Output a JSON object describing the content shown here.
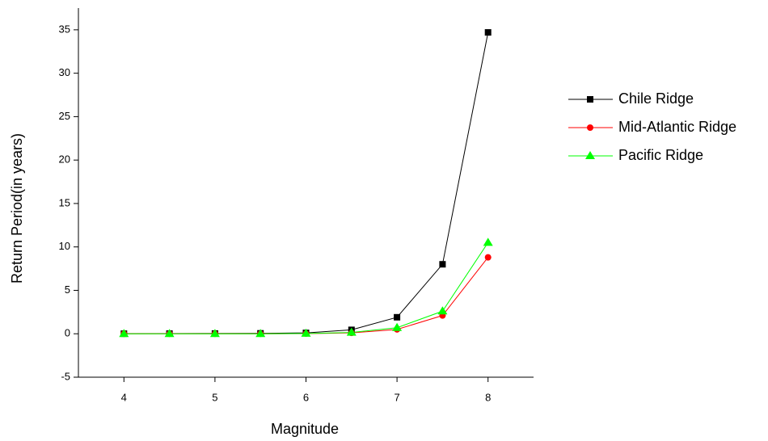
{
  "chart_data": {
    "type": "line",
    "x_label": "Magnitude",
    "y_label": "Return Period(in years)",
    "x": [
      4,
      4.5,
      5,
      5.5,
      6,
      6.5,
      7,
      7.5,
      8
    ],
    "series": [
      {
        "name": "Chile Ridge",
        "color": "#000000",
        "marker": "square",
        "values": [
          0.01,
          0.02,
          0.03,
          0.05,
          0.1,
          0.45,
          1.9,
          8.0,
          34.7
        ]
      },
      {
        "name": "Mid-Atlantic Ridge",
        "color": "#ff0000",
        "marker": "circle",
        "values": [
          0,
          0,
          0,
          0,
          0.02,
          0.1,
          0.5,
          2.1,
          8.8
        ]
      },
      {
        "name": "Pacific Ridge",
        "color": "#00ff00",
        "marker": "triangle",
        "values": [
          0,
          0,
          0,
          0,
          0.03,
          0.15,
          0.7,
          2.6,
          10.5
        ]
      }
    ],
    "xlim": [
      3.5,
      8.5
    ],
    "xticks": [
      4,
      5,
      6,
      7,
      8
    ],
    "ylim": [
      -5,
      37.5
    ],
    "yticks": [
      -5,
      0,
      5,
      10,
      15,
      20,
      25,
      30,
      35
    ],
    "grid": false,
    "legend": "right"
  }
}
